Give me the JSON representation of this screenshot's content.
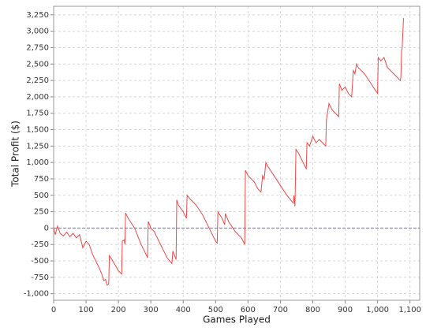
{
  "chart_data": {
    "type": "line",
    "xlabel": "Games Played",
    "ylabel": "Total Profit ($)",
    "x": [
      0,
      5,
      12,
      20,
      30,
      40,
      50,
      60,
      70,
      80,
      90,
      100,
      110,
      120,
      140,
      150,
      155,
      160,
      165,
      170,
      172,
      180,
      200,
      210,
      212,
      218,
      220,
      222,
      230,
      250,
      270,
      290,
      292,
      300,
      310,
      330,
      350,
      365,
      368,
      378,
      380,
      385,
      400,
      410,
      412,
      420,
      440,
      460,
      480,
      500,
      505,
      507,
      520,
      528,
      530,
      540,
      560,
      580,
      590,
      592,
      600,
      620,
      630,
      640,
      645,
      650,
      655,
      660,
      680,
      700,
      720,
      740,
      742,
      745,
      748,
      755,
      760,
      780,
      782,
      790,
      800,
      810,
      820,
      830,
      840,
      842,
      850,
      860,
      880,
      882,
      890,
      900,
      910,
      920,
      925,
      930,
      935,
      940,
      960,
      980,
      1000,
      1002,
      1010,
      1020,
      1030,
      1040,
      1060,
      1070,
      1072,
      1074,
      1076,
      1080
    ],
    "values": [
      0,
      -100,
      30,
      -80,
      -120,
      -60,
      -130,
      -80,
      -150,
      -100,
      -300,
      -200,
      -250,
      -400,
      -600,
      -720,
      -800,
      -780,
      -870,
      -850,
      -420,
      -480,
      -650,
      -700,
      -200,
      -180,
      -250,
      230,
      150,
      0,
      -250,
      -450,
      100,
      0,
      -50,
      -250,
      -450,
      -540,
      -350,
      -480,
      430,
      350,
      250,
      150,
      500,
      450,
      350,
      200,
      0,
      -200,
      -230,
      250,
      150,
      50,
      220,
      100,
      -50,
      -150,
      -250,
      880,
      800,
      700,
      600,
      550,
      800,
      750,
      1000,
      950,
      800,
      650,
      500,
      380,
      500,
      330,
      1200,
      1150,
      1100,
      900,
      1300,
      1250,
      1400,
      1300,
      1350,
      1300,
      1250,
      1650,
      1900,
      1800,
      1700,
      2200,
      2100,
      2150,
      2050,
      2000,
      2400,
      2350,
      2500,
      2450,
      2350,
      2200,
      2050,
      2600,
      2550,
      2600,
      2450,
      2400,
      2300,
      2250,
      2300,
      2700,
      2750,
      3200
    ],
    "color": "#f04848",
    "xlim": [
      0,
      1130
    ],
    "xticks": [
      0,
      100,
      200,
      300,
      400,
      500,
      600,
      700,
      800,
      900,
      {
        "value": 1000,
        "label": "1,000"
      },
      {
        "value": 1100,
        "label": "1,100"
      }
    ],
    "ylim": [
      -1100,
      3380
    ],
    "yticks": [
      {
        "value": -1000,
        "label": "-1,000"
      },
      -750,
      -500,
      -250,
      0,
      250,
      500,
      750,
      {
        "value": 1000,
        "label": "1,000"
      },
      {
        "value": 1250,
        "label": "1,250"
      },
      {
        "value": 1500,
        "label": "1,500"
      },
      {
        "value": 1750,
        "label": "1,750"
      },
      {
        "value": 2000,
        "label": "2,000"
      },
      {
        "value": 2250,
        "label": "2,250"
      },
      {
        "value": 2500,
        "label": "2,500"
      },
      {
        "value": 2750,
        "label": "2,750"
      },
      {
        "value": 3000,
        "label": "3,000"
      },
      {
        "value": 3250,
        "label": "3,250"
      }
    ],
    "grid": true,
    "zero_line": {
      "value": 0,
      "color": "#7070ff"
    }
  }
}
